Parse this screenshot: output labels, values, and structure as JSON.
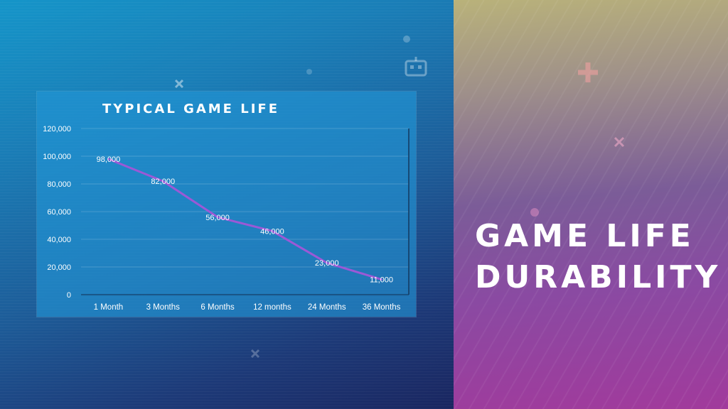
{
  "slide": {
    "headline_line1": "GAME LIFE",
    "headline_line2": "DURABILITY"
  },
  "colors": {
    "line": "#9b59d6",
    "chart_bg": "#2296d6",
    "text": "#ffffff"
  },
  "chart_data": {
    "type": "line",
    "title": "TYPICAL GAME LIFE",
    "categories": [
      "1 Month",
      "3 Months",
      "6 Months",
      "12 months",
      "24 Months",
      "36 Months"
    ],
    "series": [
      {
        "values": [
          98000,
          82000,
          56000,
          46000,
          23000,
          11000
        ]
      }
    ],
    "data_labels": [
      "98,000",
      "82,000",
      "56,000",
      "46,000",
      "23,000",
      "11,000"
    ],
    "ylim": [
      0,
      120000
    ],
    "y_ticks": [
      0,
      20000,
      40000,
      60000,
      80000,
      100000,
      120000
    ],
    "y_tick_labels": [
      "0",
      "20,000",
      "40,000",
      "60,000",
      "80,000",
      "100,000",
      "120,000"
    ],
    "grid": true,
    "legend": "none"
  }
}
